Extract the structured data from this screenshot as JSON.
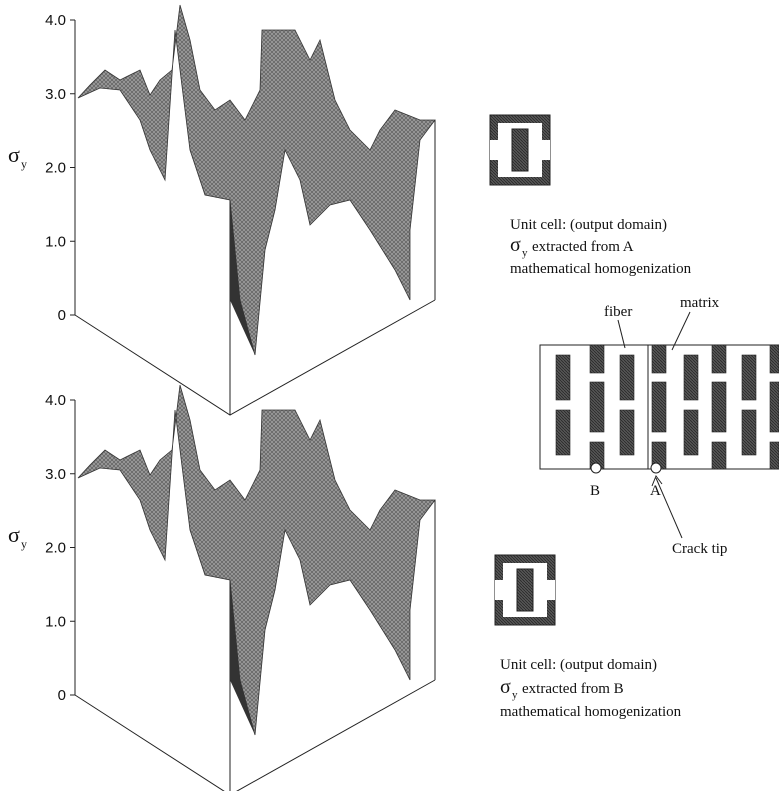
{
  "plots": [
    {
      "axis_symbol": "σ",
      "axis_sub": "y",
      "ticks": [
        "4.0",
        "3.0",
        "2.0",
        "1.0",
        "0"
      ]
    },
    {
      "axis_symbol": "σ",
      "axis_sub": "y",
      "ticks": [
        "4.0",
        "3.0",
        "2.0",
        "1.0",
        "0"
      ]
    }
  ],
  "unit_cells": [
    {
      "line1": "Unit cell:  (output domain)",
      "symbol": "σ",
      "sub": "y",
      "line2": "extracted from A",
      "line3": "mathematical homogenization"
    },
    {
      "line1": "Unit cell:  (output domain)",
      "symbol": "σ",
      "sub": "y",
      "line2": "extracted from B",
      "line3": "mathematical homogenization"
    }
  ],
  "diagram": {
    "fiber": "fiber",
    "matrix": "matrix",
    "b": "B",
    "a": "A",
    "crack_tip": "Crack tip"
  }
}
